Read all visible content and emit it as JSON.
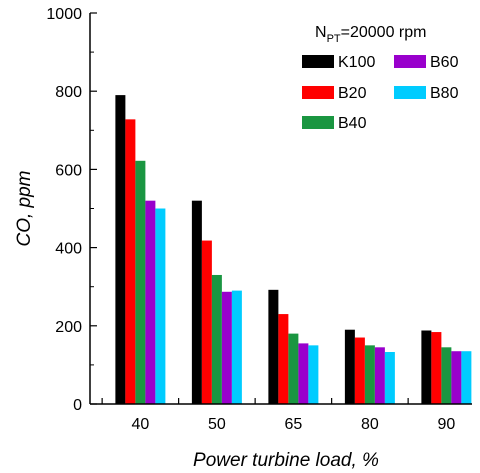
{
  "chart_data": {
    "type": "bar",
    "title": "",
    "xlabel": "Power turbine load, %",
    "ylabel": "CO, ppm",
    "ylim": [
      0,
      1000
    ],
    "yticks": [
      0,
      200,
      400,
      600,
      800,
      1000
    ],
    "categories": [
      "40",
      "50",
      "65",
      "80",
      "90"
    ],
    "grid": false,
    "legend_position": "top-right",
    "legend_title": {
      "main": "N",
      "subscript": "PT",
      "suffix": "=20000 rpm"
    },
    "series": [
      {
        "name": "K100",
        "color": "#000000",
        "values": [
          790,
          520,
          292,
          190,
          188
        ]
      },
      {
        "name": "B20",
        "color": "#ff0000",
        "values": [
          728,
          418,
          230,
          170,
          184
        ]
      },
      {
        "name": "B40",
        "color": "#1a9641",
        "values": [
          622,
          330,
          180,
          150,
          145
        ]
      },
      {
        "name": "B60",
        "color": "#9900cc",
        "values": [
          520,
          287,
          155,
          145,
          135
        ]
      },
      {
        "name": "B80",
        "color": "#00ccff",
        "values": [
          500,
          290,
          150,
          133,
          135
        ]
      }
    ]
  }
}
